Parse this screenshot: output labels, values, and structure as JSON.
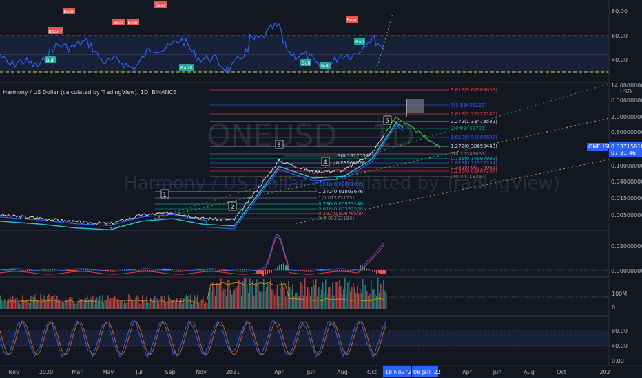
{
  "symbol": {
    "title": "Harmony / US Dollar (calculated by TradingView), 1D, BINANCE",
    "watermark_ticker": "ONEUSD",
    "watermark_interval": "1D",
    "watermark_name": "Harmony / US Dollar (calculated by TradingView)"
  },
  "colors": {
    "background": "#131722",
    "rsi_line": "#2962ff",
    "bull": "#26a69a",
    "bear": "#ef5350",
    "price_green": "#4caf50",
    "fib_red": "#f23645",
    "fib_blue": "#2962ff"
  },
  "price_axis": {
    "currency": "USD",
    "ticks": [
      "14.00000000",
      "6.00000000",
      "2.00000000",
      "0.80000000",
      "0.35000000",
      "0.10000000",
      "0.04000000",
      "0.01500000",
      "0.00500000"
    ],
    "current_price_label": "ONEUSD",
    "current_price": "0.33715818",
    "countdown": "07:31:46"
  },
  "rsi_axis_top": {
    "ticks": [
      "80.00",
      "60.00",
      "40.00"
    ]
  },
  "macd_axis": {
    "ticks": [
      "0.02000000",
      "0.00000000"
    ]
  },
  "volume_axis": {
    "ticks": [
      "100M",
      "0"
    ]
  },
  "stoch_axis": {
    "ticks": [
      "80.00",
      "40.00",
      "0.00"
    ]
  },
  "time_axis": {
    "ticks": [
      "Nov",
      "2020",
      "Mar",
      "May",
      "Jul",
      "Sep",
      "Nov",
      "2021",
      "Apr",
      "Jun",
      "Aug",
      "Oct",
      "Apr",
      "Jun",
      "Aug",
      "Oct",
      "202"
    ],
    "highlight_start": "18 Nov '21",
    "highlight_end": "08 Jan '22"
  },
  "signals": {
    "bear_label": "Bear",
    "bull_label": "Bull",
    "bear_count": 7,
    "bull_count": 6
  },
  "waves": [
    "1",
    "2",
    "3",
    "4",
    "5"
  ],
  "fib_upper": [
    {
      "label": "3.618(9.66389059)",
      "color": "#f23645"
    },
    {
      "label": "3(3.89409222)",
      "color": "#2962ff"
    },
    {
      "label": "2.618(2.22027140)",
      "color": "#f23645"
    },
    {
      "label": "2.272(1.33473582)",
      "color": "#d1d4dc"
    },
    {
      "label": "2(0.89469721)",
      "color": "#089981"
    },
    {
      "label": "1.618(0.51006687)",
      "color": "#2962ff"
    },
    {
      "label": "1.272(0.30659448)",
      "color": "#d1d4dc"
    },
    {
      "label": "1(0.20547657)",
      "color": "#787b86"
    },
    {
      "label": "0.786(0.14997992)",
      "color": "#00bcd4"
    },
    {
      "label": "0.618(0.11917244)",
      "color": "#2962ff"
    },
    {
      "label": "0.382(0.06774065)",
      "color": "#f7525f"
    },
    {
      "label": "0.236(0.05867287)",
      "color": "#f23645"
    },
    {
      "label": "0(0.04713367)",
      "color": "#787b86"
    }
  ],
  "fib_mid": [
    {
      "label": "3(0.16170509)",
      "color": "#d1d4dc"
    },
    {
      "label": "(0.29964328)",
      "color": "#d1d4dc"
    }
  ],
  "fib_lower": [
    {
      "label": "1.618(0.02801035)",
      "color": "#2962ff"
    },
    {
      "label": "1.272(0.01803676)",
      "color": "#d1d4dc"
    },
    {
      "label": "1(0.01275153)",
      "color": "#787b86"
    },
    {
      "label": "0.786(0.00923148)",
      "color": "#00bcd4"
    },
    {
      "label": "0.618(0.00592558)",
      "color": "#089981"
    },
    {
      "label": "0.382(0.00478500)",
      "color": "#f7525f"
    },
    {
      "label": "0(0.00352190)",
      "color": "#787b86"
    }
  ],
  "chart_data": {
    "type": "line",
    "title": "Harmony / US Dollar (calculated by TradingView), 1D, BINANCE",
    "scale": "log",
    "x": [
      "Nov 2019",
      "2020",
      "Mar 2020",
      "May 2020",
      "Jul 2020",
      "Sep 2020",
      "Nov 2020",
      "2021",
      "Apr 2021",
      "Jun 2021",
      "Aug 2021",
      "Oct 2021",
      "18 Nov 2021",
      "08 Jan 2022"
    ],
    "series": [
      {
        "name": "ONEUSD",
        "values": [
          0.006,
          0.005,
          0.004,
          0.0036,
          0.006,
          0.007,
          0.005,
          0.0045,
          0.16,
          0.08,
          0.09,
          0.25,
          2.2,
          0.34
        ]
      }
    ],
    "ylim": [
      0.003,
      14
    ]
  }
}
